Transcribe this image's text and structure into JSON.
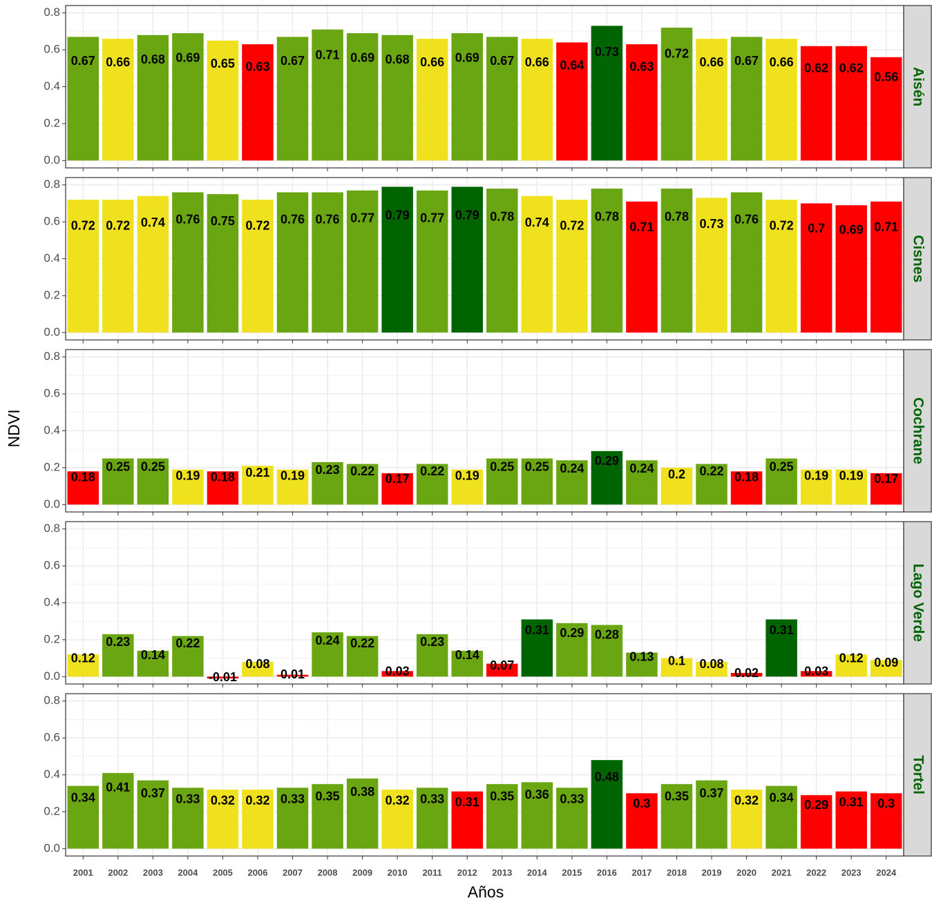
{
  "xlabel": "Años",
  "ylabel": "NDVI",
  "chart_data": {
    "type": "bar",
    "categories": [
      "2001",
      "2002",
      "2003",
      "2004",
      "2005",
      "2006",
      "2007",
      "2008",
      "2009",
      "2010",
      "2011",
      "2012",
      "2013",
      "2014",
      "2015",
      "2016",
      "2017",
      "2018",
      "2019",
      "2020",
      "2021",
      "2022",
      "2023",
      "2024"
    ],
    "ylim": [
      -0.04,
      0.84
    ],
    "yticks": [
      {
        "value": 0,
        "label": "0.0"
      },
      0.2,
      0.4,
      0.6,
      0.8
    ],
    "grid": true,
    "facets": [
      {
        "name": "Aisén",
        "values": [
          0.67,
          0.66,
          0.68,
          0.69,
          0.65,
          0.63,
          0.67,
          0.71,
          0.69,
          0.68,
          0.66,
          0.69,
          0.67,
          0.66,
          0.64,
          0.73,
          0.63,
          0.72,
          0.66,
          0.67,
          0.66,
          0.62,
          0.62,
          0.56
        ],
        "colors": [
          "#6aa512",
          "#efe11e",
          "#6aa512",
          "#6aa512",
          "#efe11e",
          "#ff0000",
          "#6aa512",
          "#6aa512",
          "#6aa512",
          "#6aa512",
          "#efe11e",
          "#6aa512",
          "#6aa512",
          "#efe11e",
          "#ff0000",
          "#006400",
          "#ff0000",
          "#6aa512",
          "#efe11e",
          "#6aa512",
          "#efe11e",
          "#ff0000",
          "#ff0000",
          "#ff0000"
        ]
      },
      {
        "name": "Cisnes",
        "values": [
          0.72,
          0.72,
          0.74,
          0.76,
          0.75,
          0.72,
          0.76,
          0.76,
          0.77,
          0.79,
          0.77,
          0.79,
          0.78,
          0.74,
          0.72,
          0.78,
          0.71,
          0.78,
          0.73,
          0.76,
          0.72,
          0.7,
          0.69,
          0.71
        ],
        "colors": [
          "#efe11e",
          "#efe11e",
          "#efe11e",
          "#6aa512",
          "#6aa512",
          "#efe11e",
          "#6aa512",
          "#6aa512",
          "#6aa512",
          "#006400",
          "#6aa512",
          "#006400",
          "#6aa512",
          "#efe11e",
          "#efe11e",
          "#6aa512",
          "#ff0000",
          "#6aa512",
          "#efe11e",
          "#6aa512",
          "#efe11e",
          "#ff0000",
          "#ff0000",
          "#ff0000"
        ]
      },
      {
        "name": "Cochrane",
        "values": [
          0.18,
          0.25,
          0.25,
          0.19,
          0.18,
          0.21,
          0.19,
          0.23,
          0.22,
          0.17,
          0.22,
          0.19,
          0.25,
          0.25,
          0.24,
          0.29,
          0.24,
          0.2,
          0.22,
          0.18,
          0.25,
          0.19,
          0.19,
          0.17
        ],
        "colors": [
          "#ff0000",
          "#6aa512",
          "#6aa512",
          "#efe11e",
          "#ff0000",
          "#efe11e",
          "#efe11e",
          "#6aa512",
          "#6aa512",
          "#ff0000",
          "#6aa512",
          "#efe11e",
          "#6aa512",
          "#6aa512",
          "#6aa512",
          "#006400",
          "#6aa512",
          "#efe11e",
          "#6aa512",
          "#ff0000",
          "#6aa512",
          "#efe11e",
          "#efe11e",
          "#ff0000"
        ]
      },
      {
        "name": "Lago Verde",
        "values": [
          0.12,
          0.23,
          0.14,
          0.22,
          -0.01,
          0.08,
          0.01,
          0.24,
          0.22,
          0.03,
          0.23,
          0.14,
          0.07,
          0.31,
          0.29,
          0.28,
          0.13,
          0.1,
          0.08,
          0.02,
          0.31,
          0.03,
          0.12,
          0.09
        ],
        "colors": [
          "#efe11e",
          "#6aa512",
          "#6aa512",
          "#6aa512",
          "#ff0000",
          "#efe11e",
          "#ff0000",
          "#6aa512",
          "#6aa512",
          "#ff0000",
          "#6aa512",
          "#6aa512",
          "#ff0000",
          "#006400",
          "#6aa512",
          "#6aa512",
          "#6aa512",
          "#efe11e",
          "#efe11e",
          "#ff0000",
          "#006400",
          "#ff0000",
          "#efe11e",
          "#efe11e"
        ]
      },
      {
        "name": "Tortel",
        "values": [
          0.34,
          0.41,
          0.37,
          0.33,
          0.32,
          0.32,
          0.33,
          0.35,
          0.38,
          0.32,
          0.33,
          0.31,
          0.35,
          0.36,
          0.33,
          0.48,
          0.3,
          0.35,
          0.37,
          0.32,
          0.34,
          0.29,
          0.31,
          0.3
        ],
        "colors": [
          "#6aa512",
          "#6aa512",
          "#6aa512",
          "#6aa512",
          "#efe11e",
          "#efe11e",
          "#6aa512",
          "#6aa512",
          "#6aa512",
          "#efe11e",
          "#6aa512",
          "#ff0000",
          "#6aa512",
          "#6aa512",
          "#6aa512",
          "#006400",
          "#ff0000",
          "#6aa512",
          "#6aa512",
          "#efe11e",
          "#6aa512",
          "#ff0000",
          "#ff0000",
          "#ff0000"
        ]
      }
    ]
  }
}
